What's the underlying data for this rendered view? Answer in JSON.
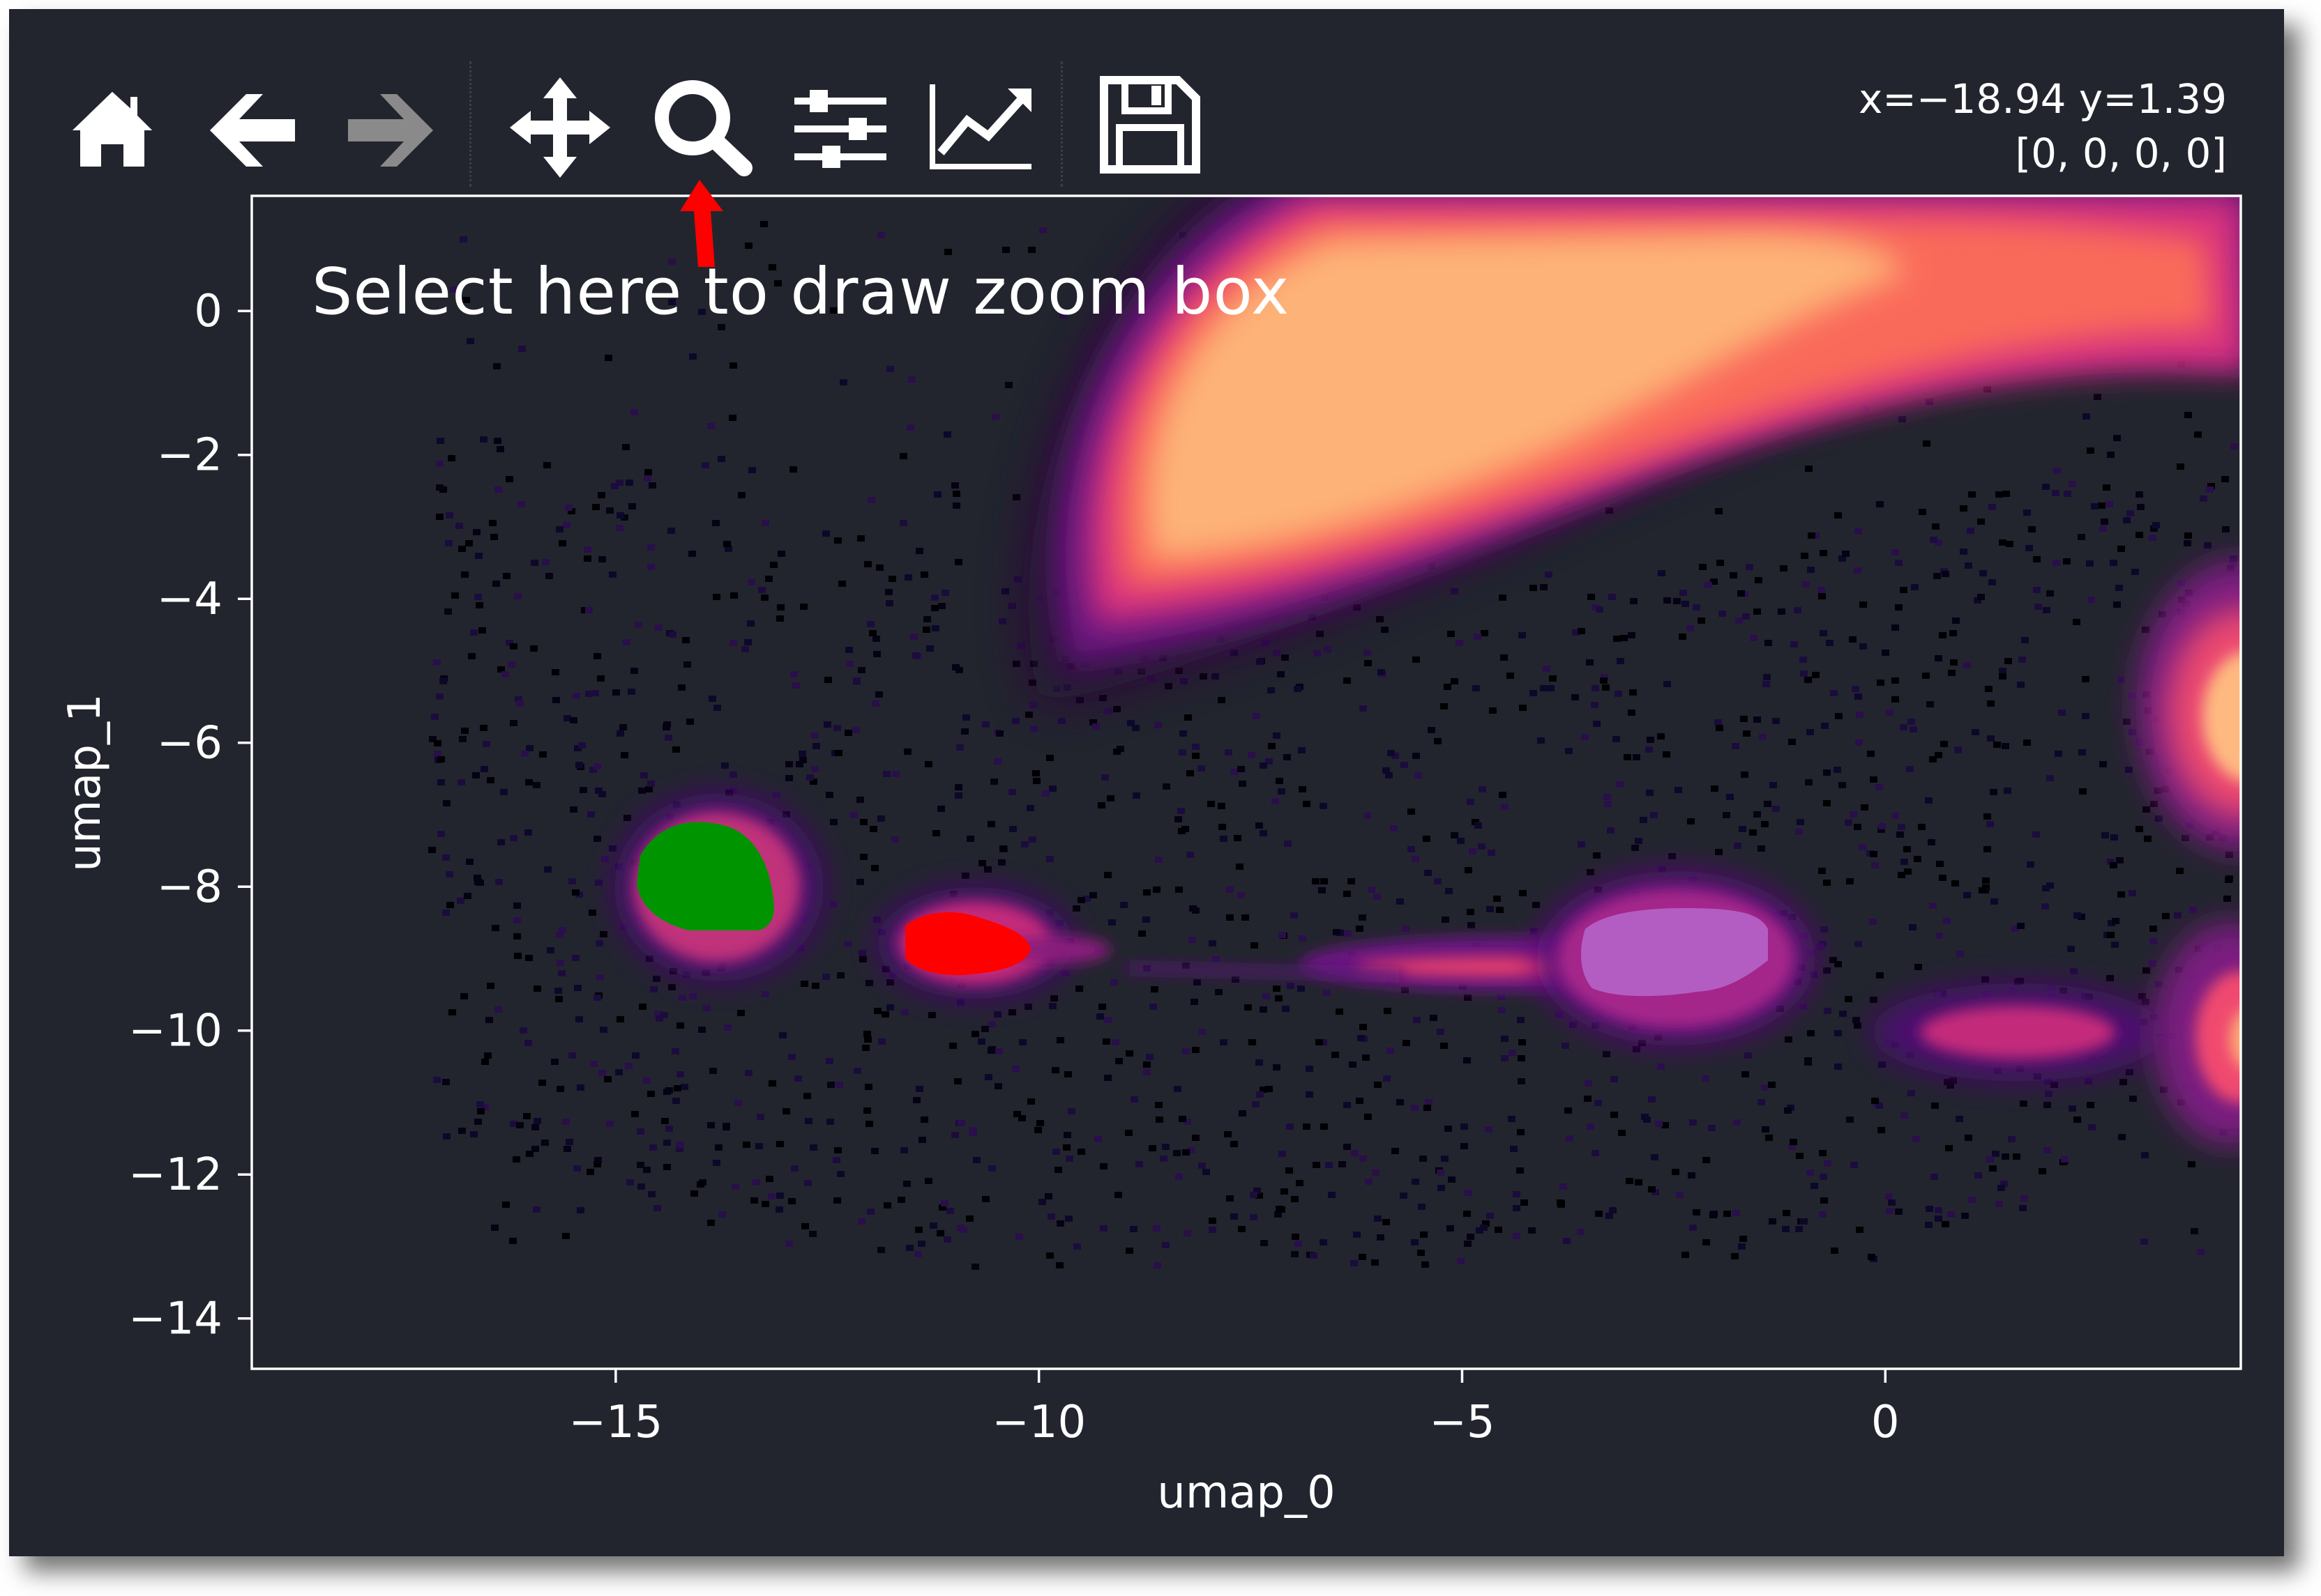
{
  "toolbar": {
    "buttons": [
      {
        "icon": "home-icon"
      },
      {
        "icon": "back-arrow-icon"
      },
      {
        "icon": "forward-arrow-icon",
        "disabled": true
      },
      {
        "icon": "pan-move-icon"
      },
      {
        "icon": "zoom-magnifier-icon"
      },
      {
        "icon": "configure-subplots-icon"
      },
      {
        "icon": "edit-axis-icon"
      },
      {
        "icon": "save-floppy-icon"
      }
    ],
    "coord_readout": "x=−18.94 y=1.39",
    "pixel_value": "[0, 0, 0, 0]"
  },
  "annotation": {
    "text": "Select here to draw zoom box",
    "arrow_color": "#ff0000"
  },
  "colors": {
    "background": "#22252e",
    "foreground": "#ffffff",
    "colormap": "magma",
    "cluster_green": "#009400",
    "cluster_red": "#ff0000",
    "cluster_violet": "#b35dc2"
  },
  "chart_data": {
    "type": "heatmap",
    "title": "",
    "xlabel": "umap_0",
    "ylabel": "umap_1",
    "xlim": [
      -19.3,
      4.2
    ],
    "ylim": [
      -14.7,
      1.6
    ],
    "xticks": [
      -15,
      -10,
      -5,
      0
    ],
    "yticks": [
      0,
      -2,
      -4,
      -6,
      -8,
      -10,
      -12,
      -14
    ],
    "xtick_labels": [
      "−15",
      "−10",
      "−5",
      "0"
    ],
    "ytick_labels": [
      "0",
      "−2",
      "−4",
      "−6",
      "−8",
      "−10",
      "−12",
      "−14"
    ],
    "density_regions": [
      {
        "x": -3.0,
        "y": -0.8,
        "intensity": 1.0
      },
      {
        "x": 3.8,
        "y": -5.6,
        "intensity": 0.85
      },
      {
        "x": 3.8,
        "y": -10.0,
        "intensity": 0.8
      },
      {
        "x": 1.6,
        "y": -9.9,
        "intensity": 0.6
      },
      {
        "x": -5.5,
        "y": -9.0,
        "intensity": 0.45
      },
      {
        "x": -13.0,
        "y": -9.0,
        "intensity": 0.35
      }
    ],
    "highlighted_clusters": [
      {
        "color": "green",
        "x": -14.0,
        "y": -7.8
      },
      {
        "color": "red",
        "x": -11.0,
        "y": -8.7
      },
      {
        "color": "violet",
        "x": -3.0,
        "y": -8.6
      }
    ],
    "grid": false
  }
}
